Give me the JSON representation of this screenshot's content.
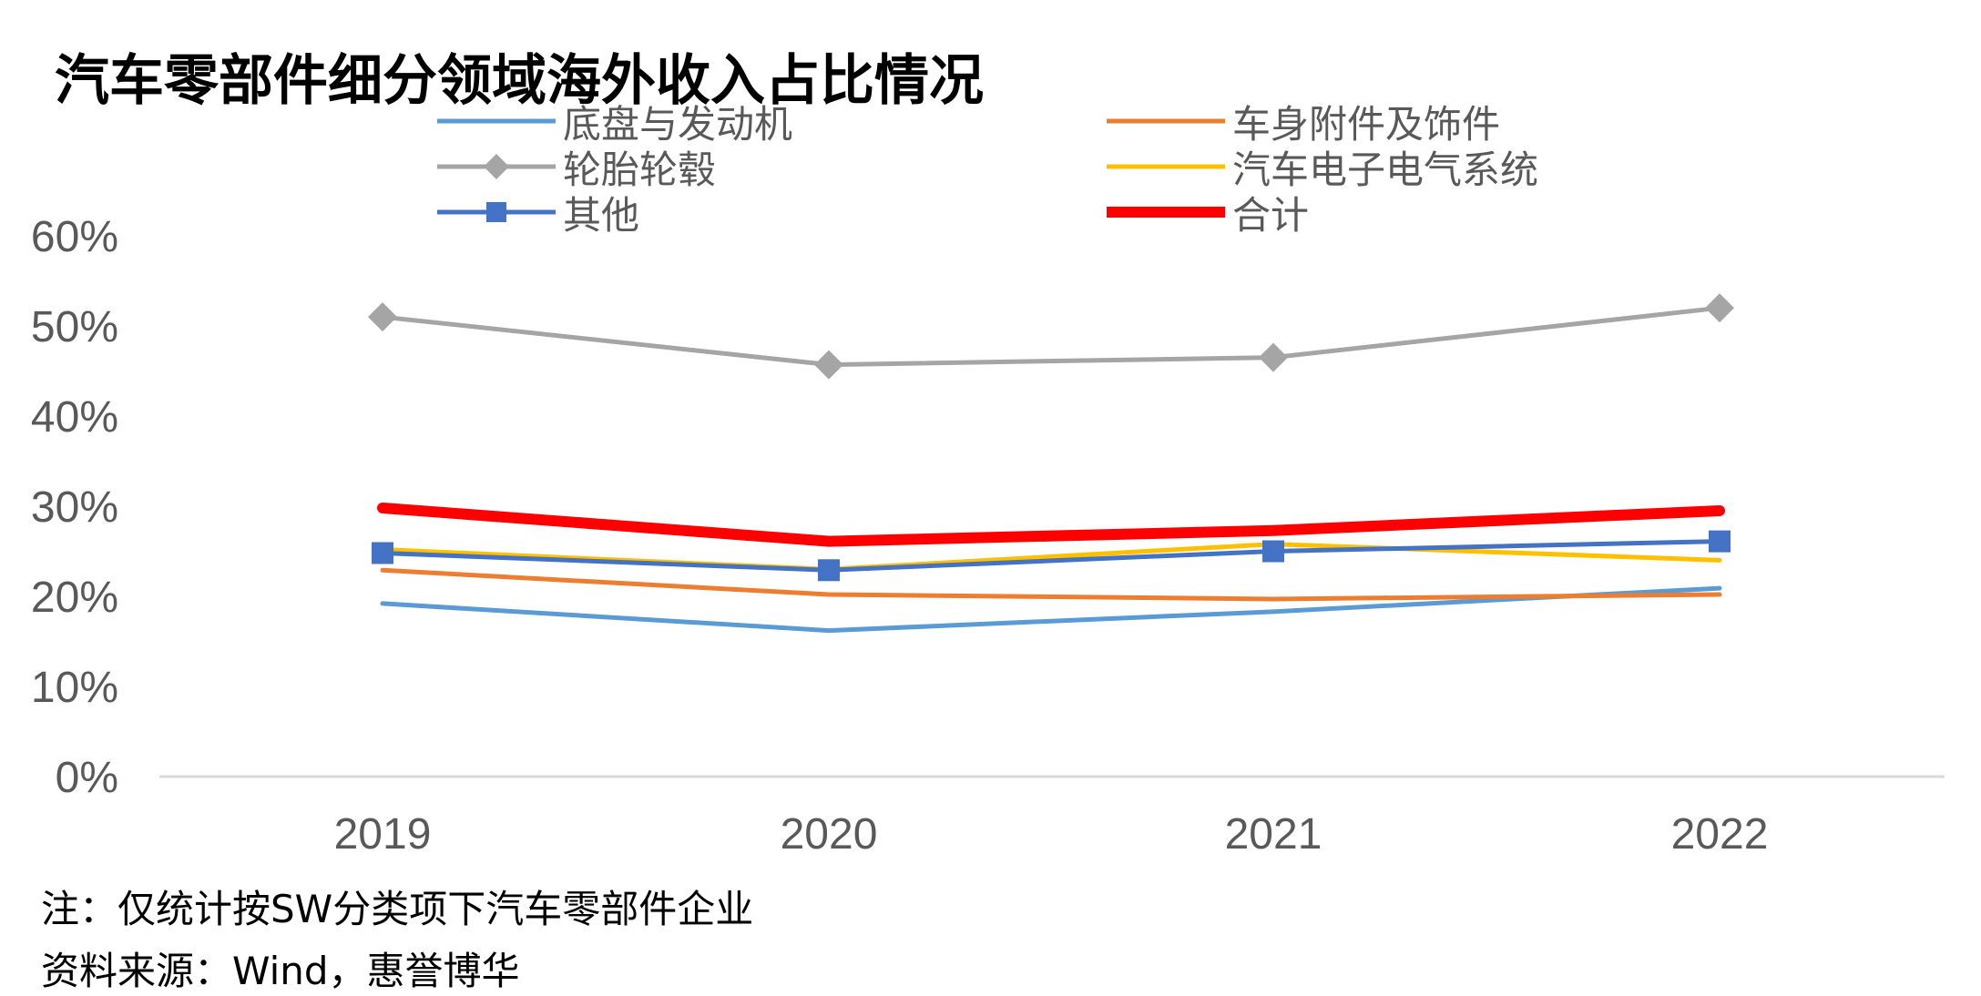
{
  "title": "汽车零部件细分领域海外收入占比情况",
  "note": "注：仅统计按SW分类项下汽车零部件企业",
  "source": "资料来源：Wind，惠誉博华",
  "chart_data": {
    "type": "line",
    "categories": [
      "2019",
      "2020",
      "2021",
      "2022"
    ],
    "y_ticks": [
      "0%",
      "10%",
      "20%",
      "30%",
      "40%",
      "50%",
      "60%"
    ],
    "ylim": [
      0,
      60
    ],
    "grid": false,
    "legend_position": "top",
    "series": [
      {
        "name": "底盘与发动机",
        "values": [
          19.2,
          16.2,
          18.3,
          20.9
        ],
        "color": "#5B9BD5",
        "marker": "none",
        "width": 5
      },
      {
        "name": "车身附件及饰件",
        "values": [
          22.9,
          20.2,
          19.7,
          20.2
        ],
        "color": "#ED7D31",
        "marker": "none",
        "width": 5
      },
      {
        "name": "轮胎轮毂",
        "values": [
          51.0,
          45.7,
          46.5,
          52.0
        ],
        "color": "#A5A5A5",
        "marker": "diamond",
        "width": 5
      },
      {
        "name": "汽车电子电气系统",
        "values": [
          25.2,
          23.0,
          25.8,
          24.0
        ],
        "color": "#FFC000",
        "marker": "none",
        "width": 5
      },
      {
        "name": "其他",
        "values": [
          24.8,
          22.9,
          25.0,
          26.1
        ],
        "color": "#4472C4",
        "marker": "square",
        "width": 5
      },
      {
        "name": "合计",
        "values": [
          29.8,
          26.1,
          27.3,
          29.5
        ],
        "color": "#FF0000",
        "marker": "none",
        "width": 12
      }
    ]
  }
}
